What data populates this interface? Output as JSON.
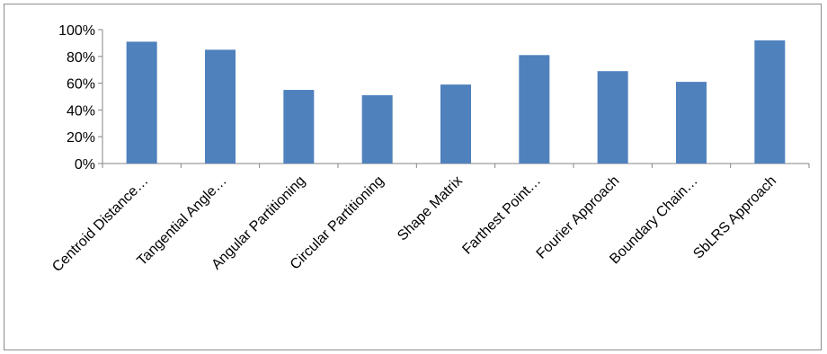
{
  "chart_data": {
    "type": "bar",
    "categories": [
      "Centroid Distance…",
      "Tangential Angle…",
      "Angular Partitioning",
      "Circular Partitioning",
      "Shape Matrix",
      "Farthest Point…",
      "Fourier Approach",
      "Boundary Chain…",
      "SbLRS Approach"
    ],
    "values": [
      0.91,
      0.85,
      0.55,
      0.51,
      0.59,
      0.81,
      0.69,
      0.61,
      0.92
    ],
    "ylim": [
      0,
      1
    ],
    "yticks": [
      {
        "value": 0,
        "label": "0%"
      },
      {
        "value": 0.2,
        "label": "20%"
      },
      {
        "value": 0.4,
        "label": "40%"
      },
      {
        "value": 0.6,
        "label": "60%"
      },
      {
        "value": 0.8,
        "label": "80%"
      },
      {
        "value": 1.0,
        "label": "100%"
      }
    ],
    "grid": false,
    "legend": "none",
    "bar_color": "#4f81bd",
    "axis_color": "#868686"
  }
}
